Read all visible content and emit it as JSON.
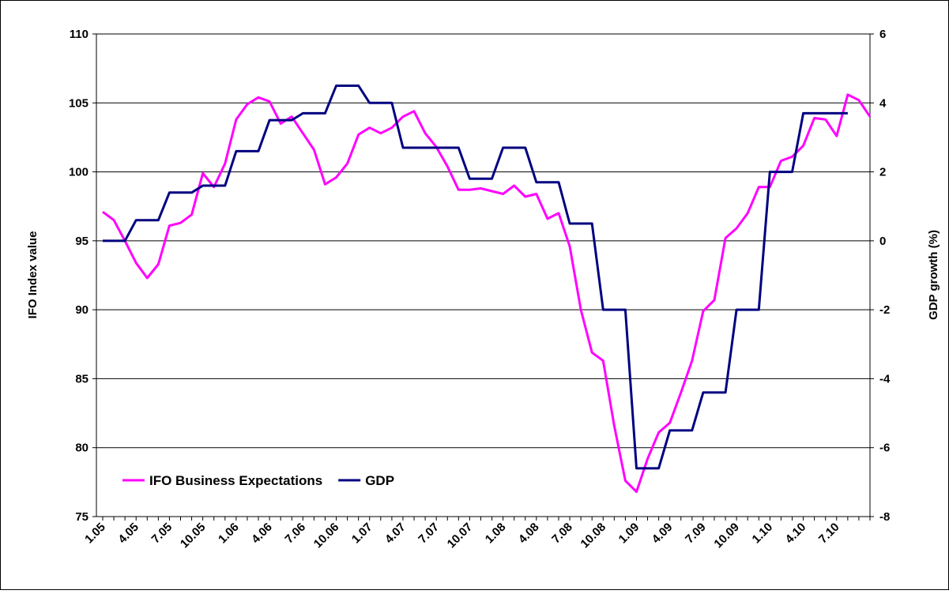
{
  "chart_data": {
    "type": "line",
    "y_label": "IFO Index value",
    "y2_label": "GDP growth (%)",
    "categories": [
      "1.05",
      null,
      null,
      "4.05",
      null,
      null,
      "7.05",
      null,
      null,
      "10.05",
      null,
      null,
      "1.06",
      null,
      null,
      "4.06",
      null,
      null,
      "7.06",
      null,
      null,
      "10.06",
      null,
      null,
      "1.07",
      null,
      null,
      "4.07",
      null,
      null,
      "7.07",
      null,
      null,
      "10.07",
      null,
      null,
      "1.08",
      null,
      null,
      "4.08",
      null,
      null,
      "7.08",
      null,
      null,
      "10.08",
      null,
      null,
      "1.09",
      null,
      null,
      "4.09",
      null,
      null,
      "7.09",
      null,
      null,
      "10.09",
      null,
      null,
      "1.10",
      null,
      null,
      "4.10",
      null,
      null,
      "7.10",
      null,
      null,
      null
    ],
    "series": [
      {
        "name": "IFO Business Expectations",
        "color": "#ff00ff",
        "axis": "y",
        "values": [
          97.1,
          96.5,
          95.0,
          93.4,
          92.3,
          93.3,
          96.1,
          96.3,
          96.9,
          99.9,
          98.9,
          100.6,
          103.8,
          104.9,
          105.4,
          105.1,
          103.5,
          104.0,
          102.8,
          101.6,
          99.1,
          99.6,
          100.6,
          102.7,
          103.2,
          102.8,
          103.2,
          104.0,
          104.4,
          102.8,
          101.8,
          100.4,
          98.7,
          98.7,
          98.8,
          98.6,
          98.4,
          99.0,
          98.2,
          98.4,
          96.6,
          97.0,
          94.6,
          90.0,
          86.9,
          86.3,
          81.6,
          77.6,
          76.8,
          79.2,
          81.1,
          81.8,
          84.0,
          86.3,
          89.9,
          90.7,
          95.2,
          95.9,
          97.0,
          98.9,
          98.9,
          100.8,
          101.1,
          101.9,
          103.9,
          103.8,
          102.6,
          105.6,
          105.2,
          104.0
        ]
      },
      {
        "name": "GDP",
        "color": "#000080",
        "axis": "y2",
        "values": [
          0,
          0,
          0,
          0.6,
          0.6,
          0.6,
          1.4,
          1.4,
          1.4,
          1.6,
          1.6,
          1.6,
          2.6,
          2.6,
          2.6,
          3.5,
          3.5,
          3.5,
          3.7,
          3.7,
          3.7,
          4.5,
          4.5,
          4.5,
          4.0,
          4.0,
          4.0,
          2.7,
          2.7,
          2.7,
          2.7,
          2.7,
          2.7,
          1.8,
          1.8,
          1.8,
          2.7,
          2.7,
          2.7,
          1.7,
          1.7,
          1.7,
          0.5,
          0.5,
          0.5,
          -2.0,
          -2.0,
          -2.0,
          -6.6,
          -6.6,
          -6.6,
          -5.5,
          -5.5,
          -5.5,
          -4.4,
          -4.4,
          -4.4,
          -2.0,
          -2.0,
          -2.0,
          2.0,
          2.0,
          2.0,
          3.7,
          3.7,
          3.7,
          3.7,
          3.7,
          null,
          null
        ]
      }
    ],
    "ylim": [
      75,
      110
    ],
    "yticks": [
      75,
      80,
      85,
      90,
      95,
      100,
      105,
      110
    ],
    "y2lim": [
      -8,
      6
    ],
    "y2ticks": [
      -8,
      -6,
      -4,
      -2,
      0,
      2,
      4,
      6
    ],
    "grid": true,
    "legend": "bottom-left"
  }
}
